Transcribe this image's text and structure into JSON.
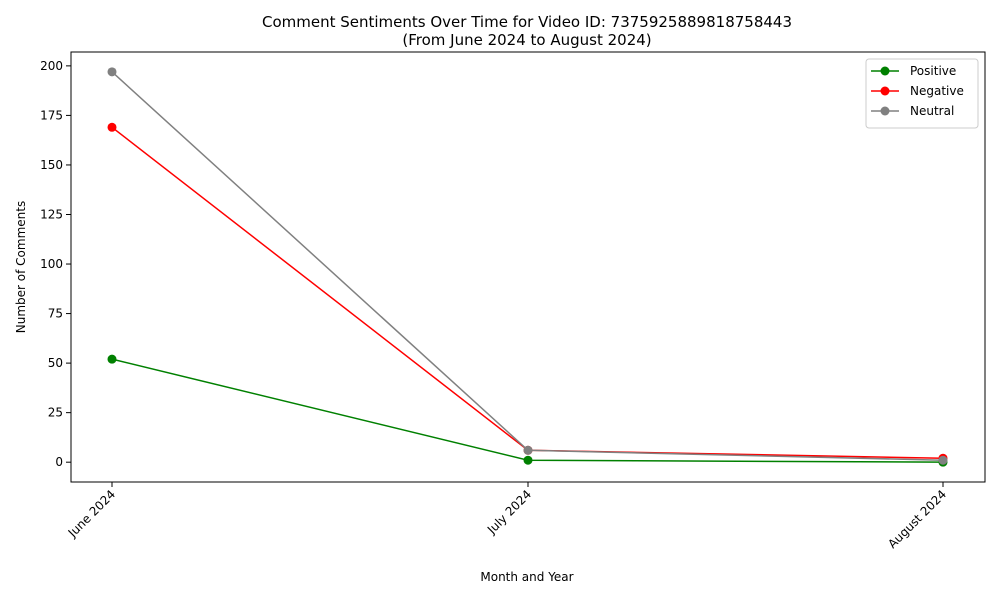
{
  "chart_data": {
    "type": "line",
    "title": "Comment Sentiments Over Time for Video ID: 7375925889818758443",
    "subtitle": "(From June 2024 to August 2024)",
    "xlabel": "Month and Year",
    "ylabel": "Number of Comments",
    "categories": [
      "June 2024",
      "July 2024",
      "August 2024"
    ],
    "ylim": [
      -10,
      207
    ],
    "yticks": [
      0,
      25,
      50,
      75,
      100,
      125,
      150,
      175,
      200
    ],
    "grid": false,
    "legend_position": "top-right",
    "series": [
      {
        "name": "Positive",
        "color": "#008000",
        "values": [
          52,
          1,
          0
        ]
      },
      {
        "name": "Negative",
        "color": "#ff0000",
        "values": [
          169,
          6,
          2
        ]
      },
      {
        "name": "Neutral",
        "color": "#808080",
        "values": [
          197,
          6,
          1
        ]
      }
    ]
  }
}
